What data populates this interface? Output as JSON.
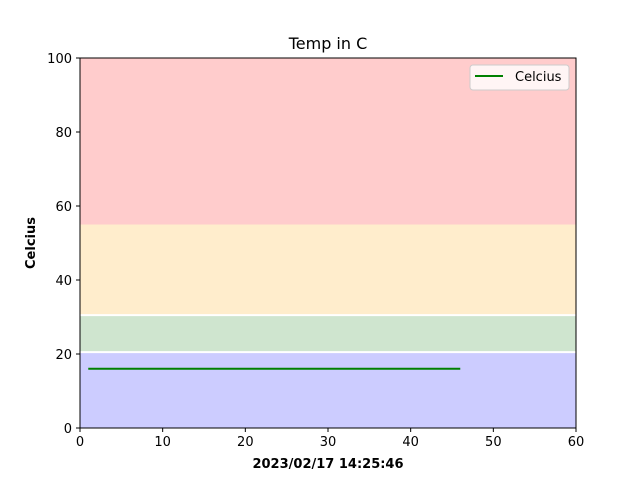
{
  "chart_data": {
    "type": "line",
    "title": "Temp in C",
    "xlabel": "2023/02/17 14:25:46",
    "ylabel": "Celcius",
    "xlim": [
      0,
      60
    ],
    "ylim": [
      0,
      100
    ],
    "xticks": [
      0,
      10,
      20,
      30,
      40,
      50,
      60
    ],
    "yticks": [
      0,
      20,
      40,
      60,
      80,
      100
    ],
    "grid": false,
    "legend_position": "upper right",
    "bands": [
      {
        "from": 0,
        "to": 20.5,
        "color": "#ccccff"
      },
      {
        "from": 20.5,
        "to": 30.5,
        "color": "#cfe5cf"
      },
      {
        "from": 30.5,
        "to": 55,
        "color": "#ffedcc"
      },
      {
        "from": 55,
        "to": 100,
        "color": "#ffcccc"
      }
    ],
    "series": [
      {
        "name": "Celcius",
        "color": "#008000",
        "x": [
          1,
          46
        ],
        "y": [
          16,
          16
        ]
      }
    ]
  }
}
